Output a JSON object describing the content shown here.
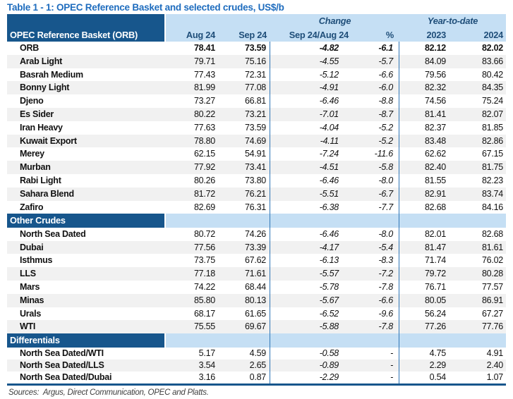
{
  "title": "Table 1 - 1: OPEC Reference Basket and selected crudes, US$/b",
  "header": {
    "name_col": "OPEC Reference Basket (ORB)",
    "group_change": "Change",
    "group_ytd": "Year-to-date",
    "cols": [
      "Aug 24",
      "Sep 24",
      "Sep 24/Aug 24",
      "%",
      "2023",
      "2024"
    ]
  },
  "sections": [
    {
      "band": null,
      "rows": [
        {
          "name": "ORB",
          "bold": true,
          "values": [
            "78.41",
            "73.59",
            "-4.82",
            "-6.1",
            "82.12",
            "82.02"
          ]
        },
        {
          "name": "Arab Light",
          "values": [
            "79.71",
            "75.16",
            "-4.55",
            "-5.7",
            "84.09",
            "83.66"
          ]
        },
        {
          "name": "Basrah Medium",
          "values": [
            "77.43",
            "72.31",
            "-5.12",
            "-6.6",
            "79.56",
            "80.42"
          ]
        },
        {
          "name": "Bonny Light",
          "values": [
            "81.99",
            "77.08",
            "-4.91",
            "-6.0",
            "82.32",
            "84.35"
          ]
        },
        {
          "name": "Djeno",
          "values": [
            "73.27",
            "66.81",
            "-6.46",
            "-8.8",
            "74.56",
            "75.24"
          ]
        },
        {
          "name": "Es Sider",
          "values": [
            "80.22",
            "73.21",
            "-7.01",
            "-8.7",
            "81.41",
            "82.07"
          ]
        },
        {
          "name": "Iran Heavy",
          "values": [
            "77.63",
            "73.59",
            "-4.04",
            "-5.2",
            "82.37",
            "81.85"
          ]
        },
        {
          "name": "Kuwait Export",
          "values": [
            "78.80",
            "74.69",
            "-4.11",
            "-5.2",
            "83.48",
            "82.86"
          ]
        },
        {
          "name": "Merey",
          "values": [
            "62.15",
            "54.91",
            "-7.24",
            "-11.6",
            "62.62",
            "67.15"
          ]
        },
        {
          "name": "Murban",
          "values": [
            "77.92",
            "73.41",
            "-4.51",
            "-5.8",
            "82.40",
            "81.75"
          ]
        },
        {
          "name": "Rabi Light",
          "values": [
            "80.26",
            "73.80",
            "-6.46",
            "-8.0",
            "81.55",
            "82.23"
          ]
        },
        {
          "name": "Sahara Blend",
          "values": [
            "81.72",
            "76.21",
            "-5.51",
            "-6.7",
            "82.91",
            "83.74"
          ]
        },
        {
          "name": "Zafiro",
          "values": [
            "82.69",
            "76.31",
            "-6.38",
            "-7.7",
            "82.68",
            "84.16"
          ]
        }
      ]
    },
    {
      "band": "Other Crudes",
      "rows": [
        {
          "name": "North Sea Dated",
          "values": [
            "80.72",
            "74.26",
            "-6.46",
            "-8.0",
            "82.01",
            "82.68"
          ]
        },
        {
          "name": "Dubai",
          "values": [
            "77.56",
            "73.39",
            "-4.17",
            "-5.4",
            "81.47",
            "81.61"
          ]
        },
        {
          "name": "Isthmus",
          "values": [
            "73.75",
            "67.62",
            "-6.13",
            "-8.3",
            "71.74",
            "76.02"
          ]
        },
        {
          "name": "LLS",
          "values": [
            "77.18",
            "71.61",
            "-5.57",
            "-7.2",
            "79.72",
            "80.28"
          ]
        },
        {
          "name": "Mars",
          "values": [
            "74.22",
            "68.44",
            "-5.78",
            "-7.8",
            "76.71",
            "77.57"
          ]
        },
        {
          "name": "Minas",
          "values": [
            "85.80",
            "80.13",
            "-5.67",
            "-6.6",
            "80.05",
            "86.91"
          ]
        },
        {
          "name": "Urals",
          "values": [
            "68.17",
            "61.65",
            "-6.52",
            "-9.6",
            "56.24",
            "67.27"
          ]
        },
        {
          "name": "WTI",
          "values": [
            "75.55",
            "69.67",
            "-5.88",
            "-7.8",
            "77.26",
            "77.76"
          ]
        }
      ]
    },
    {
      "band": "Differentials",
      "rows": [
        {
          "name": "North Sea Dated/WTI",
          "values": [
            "5.17",
            "4.59",
            "-0.58",
            "-",
            "4.75",
            "4.91"
          ]
        },
        {
          "name": "North Sea Dated/LLS",
          "values": [
            "3.54",
            "2.65",
            "-0.89",
            "-",
            "2.29",
            "2.40"
          ]
        },
        {
          "name": "North Sea Dated/Dubai",
          "values": [
            "3.16",
            "0.87",
            "-2.29",
            "-",
            "0.54",
            "1.07"
          ]
        }
      ]
    }
  ],
  "footer": {
    "sources": "Sources:  Argus, Direct Communication, OPEC and Platts."
  },
  "colors": {
    "navy": "#17568C",
    "band_light_blue": "#C5DFF4",
    "header_text": "#1F4E79",
    "title_blue": "#1E6CBE",
    "separator_line": "#2E75B6",
    "row_stripe": "#F1F1F1"
  }
}
